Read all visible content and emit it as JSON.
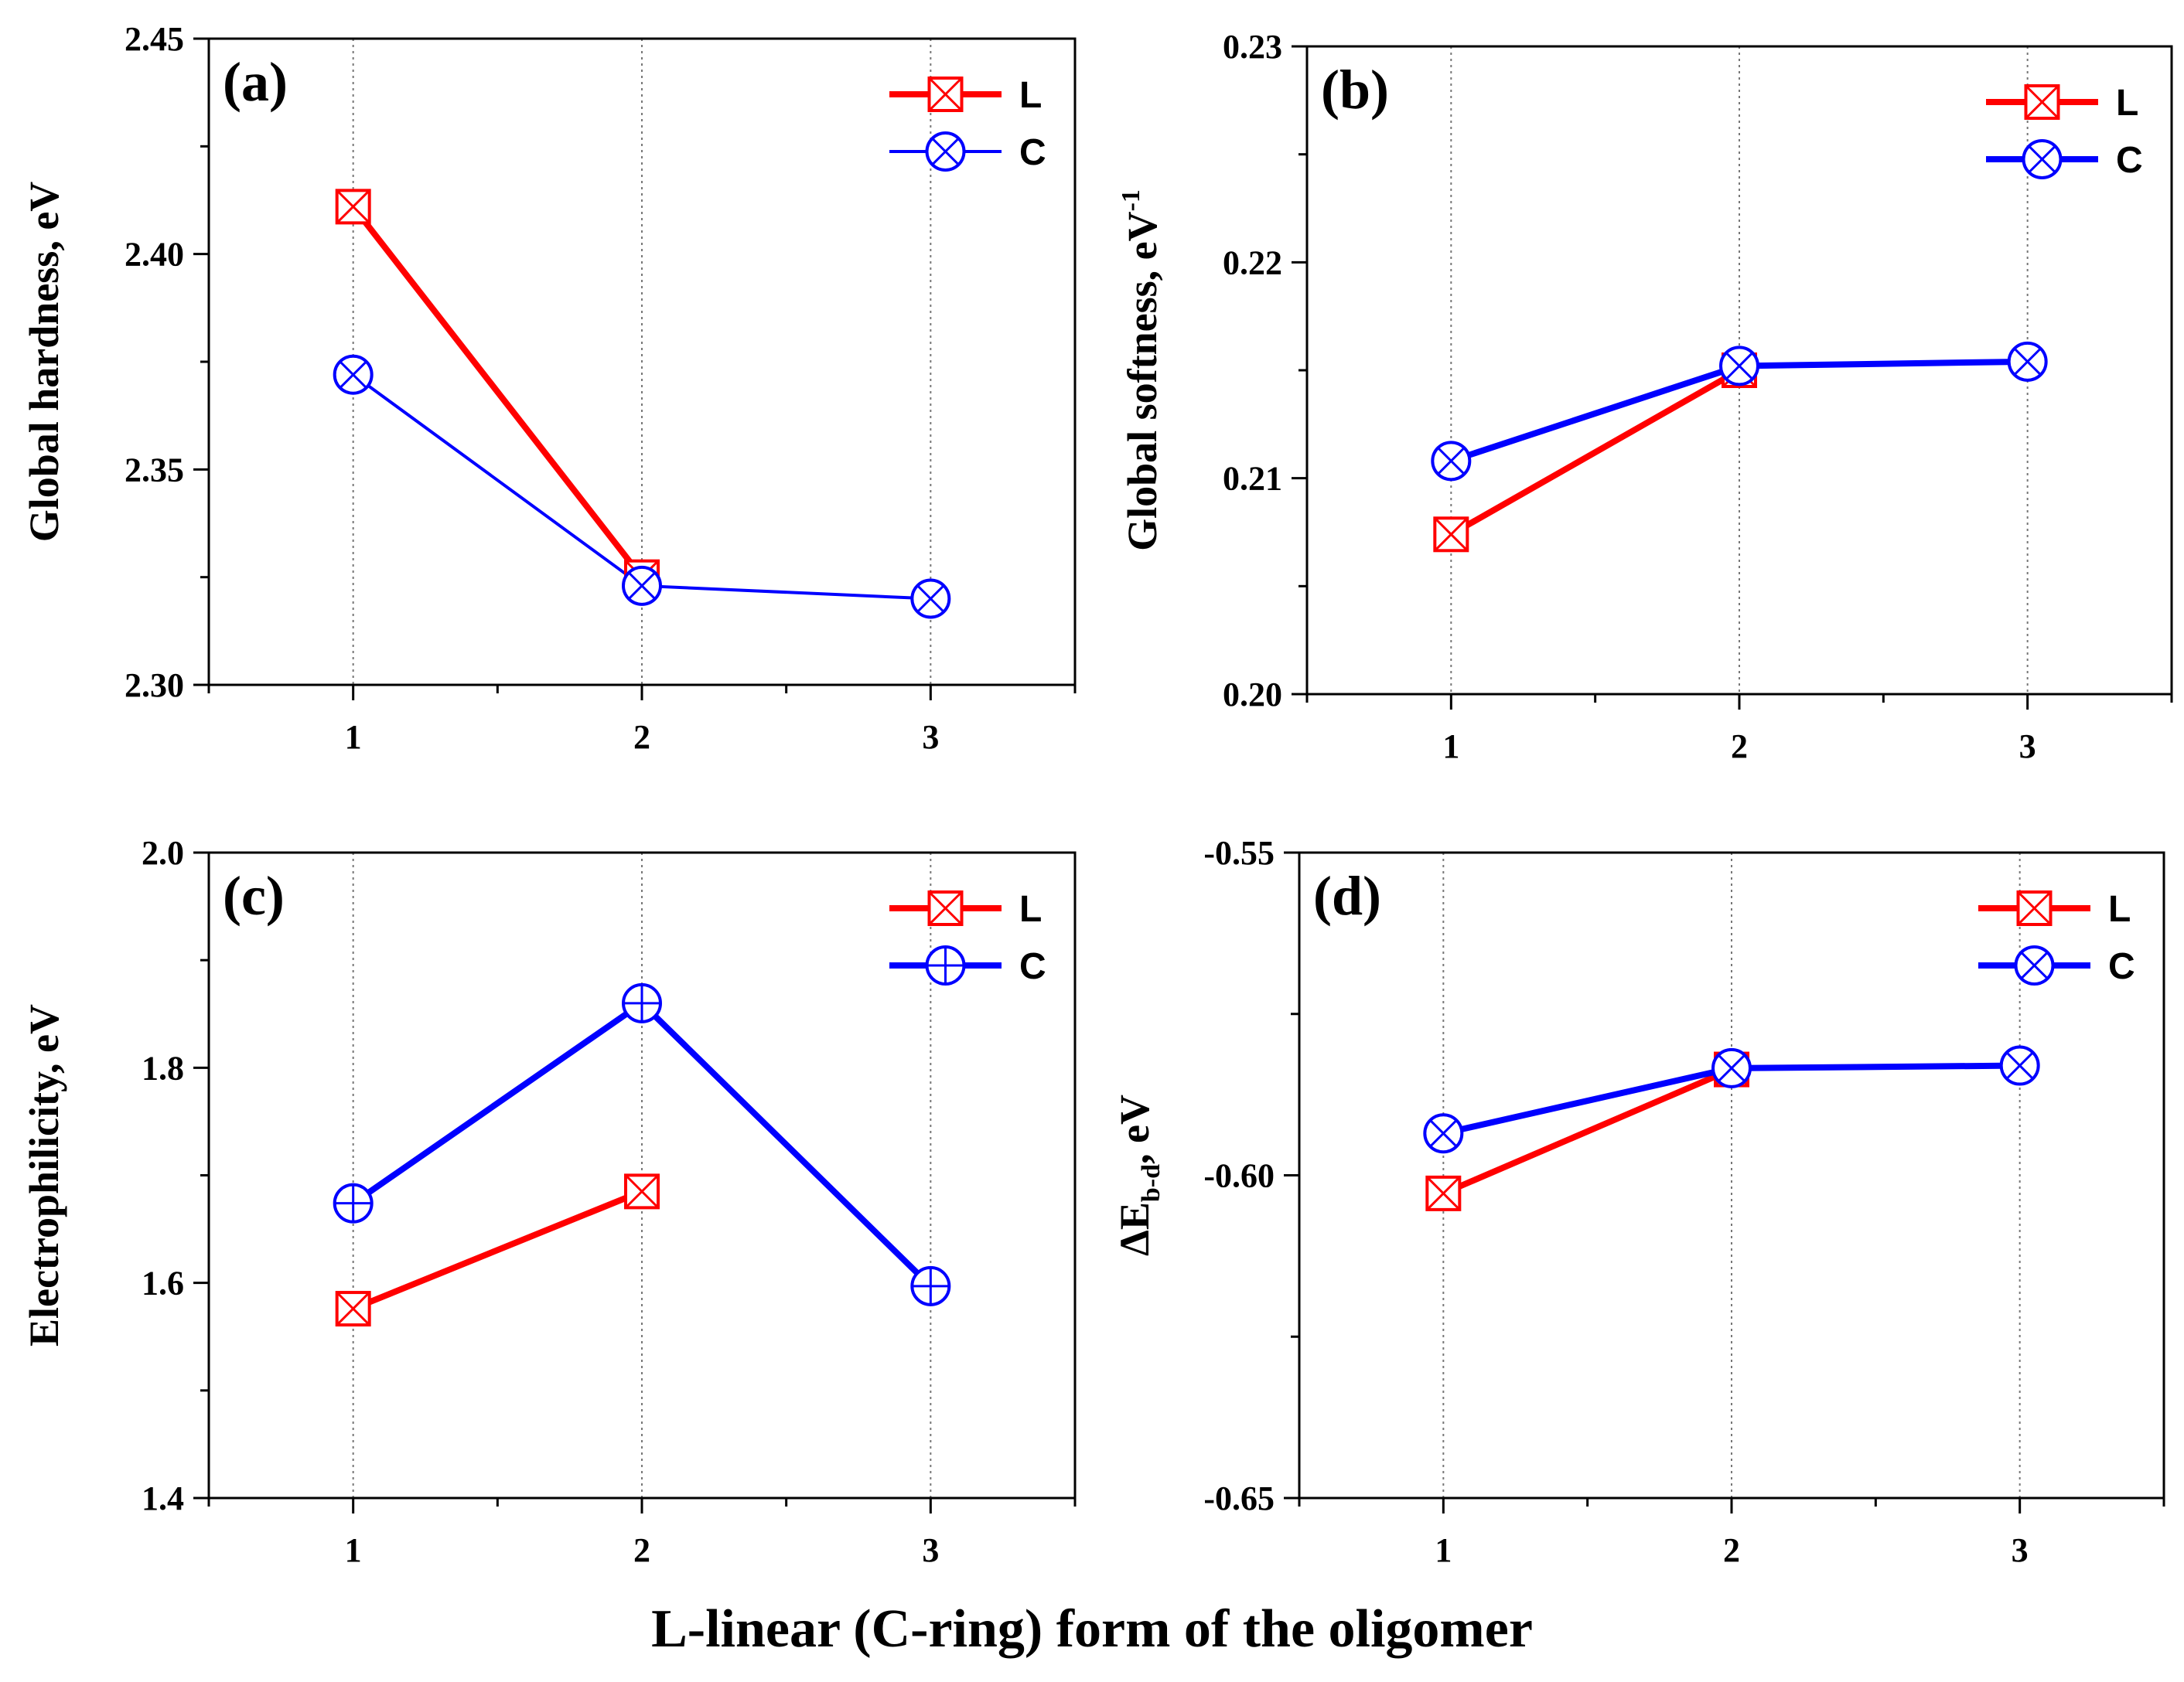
{
  "figure": {
    "xlabel": "L-linear (C-ring) form of the oligomer"
  },
  "chart_data": [
    {
      "type": "line",
      "panel_label": "(a)",
      "ylabel": "Global hardness, eV",
      "ylabel_sup": "",
      "ylabel_sub": "",
      "x": [
        1,
        2,
        3
      ],
      "x_ticks": [
        "1",
        "2",
        "3"
      ],
      "xlim": [
        0.5,
        3.5
      ],
      "ylim": [
        2.3,
        2.45
      ],
      "y_ticks": [
        "2.30",
        "2.35",
        "2.40",
        "2.45"
      ],
      "grid": "vertical-dotted",
      "legend": "top-right",
      "series": [
        {
          "name": "L",
          "color": "#ff0000",
          "marker": "square-x",
          "width": "thick",
          "values": [
            2.411,
            2.325,
            null
          ]
        },
        {
          "name": "C",
          "color": "#0000ff",
          "marker": "circle-x",
          "width": "thin",
          "values": [
            2.372,
            2.323,
            2.32
          ]
        }
      ]
    },
    {
      "type": "line",
      "panel_label": "(b)",
      "ylabel": "Global softness, eV",
      "ylabel_sup": "-1",
      "ylabel_sub": "",
      "x": [
        1,
        2,
        3
      ],
      "x_ticks": [
        "1",
        "2",
        "3"
      ],
      "xlim": [
        0.5,
        3.5
      ],
      "ylim": [
        0.2,
        0.23
      ],
      "y_ticks": [
        "0.20",
        "0.21",
        "0.22",
        "0.23"
      ],
      "grid": "vertical-dotted",
      "legend": "top-right",
      "series": [
        {
          "name": "L",
          "color": "#ff0000",
          "marker": "square-x",
          "width": "thick",
          "values": [
            0.2074,
            0.215,
            null
          ]
        },
        {
          "name": "C",
          "color": "#0000ff",
          "marker": "circle-x",
          "width": "thick",
          "values": [
            0.2108,
            0.2152,
            0.2154
          ]
        }
      ]
    },
    {
      "type": "line",
      "panel_label": "(c)",
      "ylabel": "Electrophilicity, eV",
      "ylabel_sup": "",
      "ylabel_sub": "",
      "x": [
        1,
        2,
        3
      ],
      "x_ticks": [
        "1",
        "2",
        "3"
      ],
      "xlim": [
        0.5,
        3.5
      ],
      "ylim": [
        1.4,
        2.0
      ],
      "y_ticks": [
        "1.4",
        "1.6",
        "1.8",
        "2.0"
      ],
      "grid": "vertical-dotted",
      "legend": "top-right",
      "series": [
        {
          "name": "L",
          "color": "#ff0000",
          "marker": "square-x",
          "width": "thick",
          "values": [
            1.576,
            1.685,
            null
          ]
        },
        {
          "name": "C",
          "color": "#0000ff",
          "marker": "circle-plus",
          "width": "thick",
          "values": [
            1.674,
            1.86,
            1.597
          ]
        }
      ]
    },
    {
      "type": "line",
      "panel_label": "(d)",
      "ylabel": "ΔE",
      "ylabel_sup": "",
      "ylabel_sub": "b-d",
      "ylabel_suffix": ", eV",
      "x": [
        1,
        2,
        3
      ],
      "x_ticks": [
        "1",
        "2",
        "3"
      ],
      "xlim": [
        0.5,
        3.5
      ],
      "ylim": [
        -0.65,
        -0.55
      ],
      "y_ticks": [
        "-0.65",
        "-0.60",
        "-0.55"
      ],
      "grid": "vertical-dotted",
      "legend": "top-right",
      "series": [
        {
          "name": "L",
          "color": "#ff0000",
          "marker": "square-x",
          "width": "thick",
          "values": [
            -0.6028,
            -0.5836,
            null
          ]
        },
        {
          "name": "C",
          "color": "#0000ff",
          "marker": "circle-x",
          "width": "thick",
          "values": [
            -0.5935,
            -0.5834,
            -0.583
          ]
        }
      ]
    }
  ]
}
